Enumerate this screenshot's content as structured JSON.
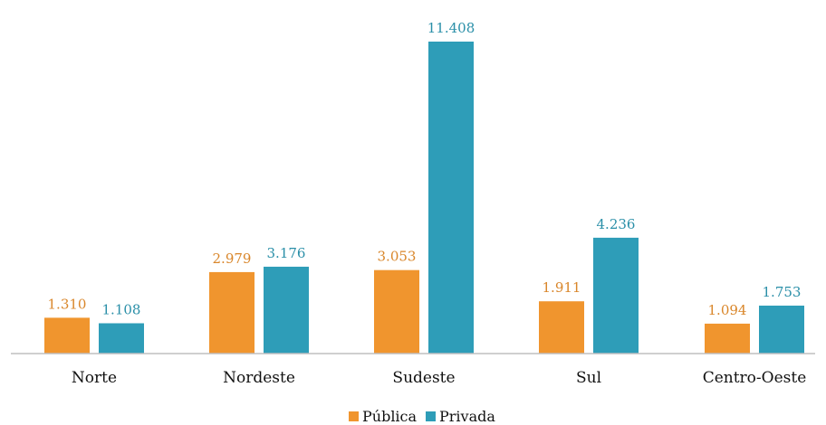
{
  "chart_data": {
    "type": "bar",
    "categories": [
      "Norte",
      "Nordeste",
      "Sudeste",
      "Sul",
      "Centro-Oeste"
    ],
    "series": [
      {
        "name": "Pública",
        "color": "#F0952E",
        "values": [
          1310,
          2979,
          3053,
          1911,
          1094
        ],
        "labels": [
          "1.310",
          "2.979",
          "3.053",
          "1.911",
          "1.094"
        ]
      },
      {
        "name": "Privada",
        "color": "#2E9DB8",
        "values": [
          1108,
          3176,
          11408,
          4236,
          1753
        ],
        "labels": [
          "1.108",
          "3.176",
          "11.408",
          "4.236",
          "1.753"
        ]
      }
    ],
    "ylim": [
      0,
      11408
    ],
    "grid": false,
    "legend_position": "bottom-center",
    "title": "",
    "xlabel": "",
    "ylabel": ""
  }
}
